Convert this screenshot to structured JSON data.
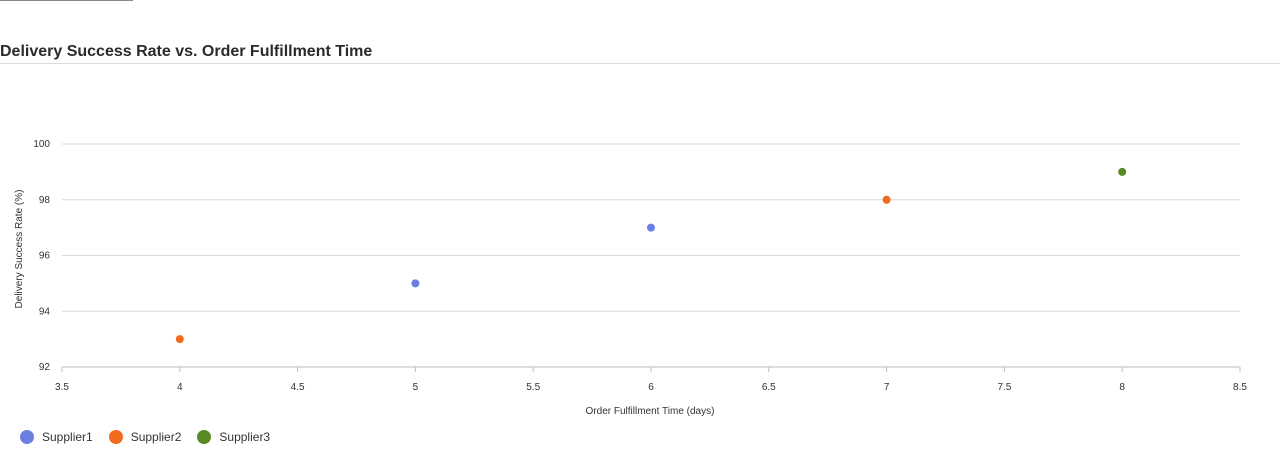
{
  "chart_data": {
    "type": "scatter",
    "title": "Delivery Success Rate vs. Order Fulfillment Time",
    "xlabel": "Order Fulfillment Time (days)",
    "ylabel": "Delivery Success Rate (%)",
    "xlim": [
      3.5,
      8.5
    ],
    "ylim": [
      92,
      100
    ],
    "xticks": [
      "3.5",
      "4",
      "4.5",
      "5",
      "5.5",
      "6",
      "6.5",
      "7",
      "7.5",
      "8",
      "8.5"
    ],
    "yticks": [
      "92",
      "94",
      "96",
      "98",
      "100"
    ],
    "grid": "horizontal",
    "legend": "bottom-left",
    "series": [
      {
        "name": "Supplier1",
        "color": "#6b7fe3",
        "points": [
          {
            "x": 5,
            "y": 95
          },
          {
            "x": 6,
            "y": 97
          }
        ]
      },
      {
        "name": "Supplier2",
        "color": "#f26b1d",
        "points": [
          {
            "x": 4,
            "y": 93
          },
          {
            "x": 7,
            "y": 98
          }
        ]
      },
      {
        "name": "Supplier3",
        "color": "#5a8a23",
        "points": [
          {
            "x": 8,
            "y": 99
          }
        ]
      }
    ]
  }
}
